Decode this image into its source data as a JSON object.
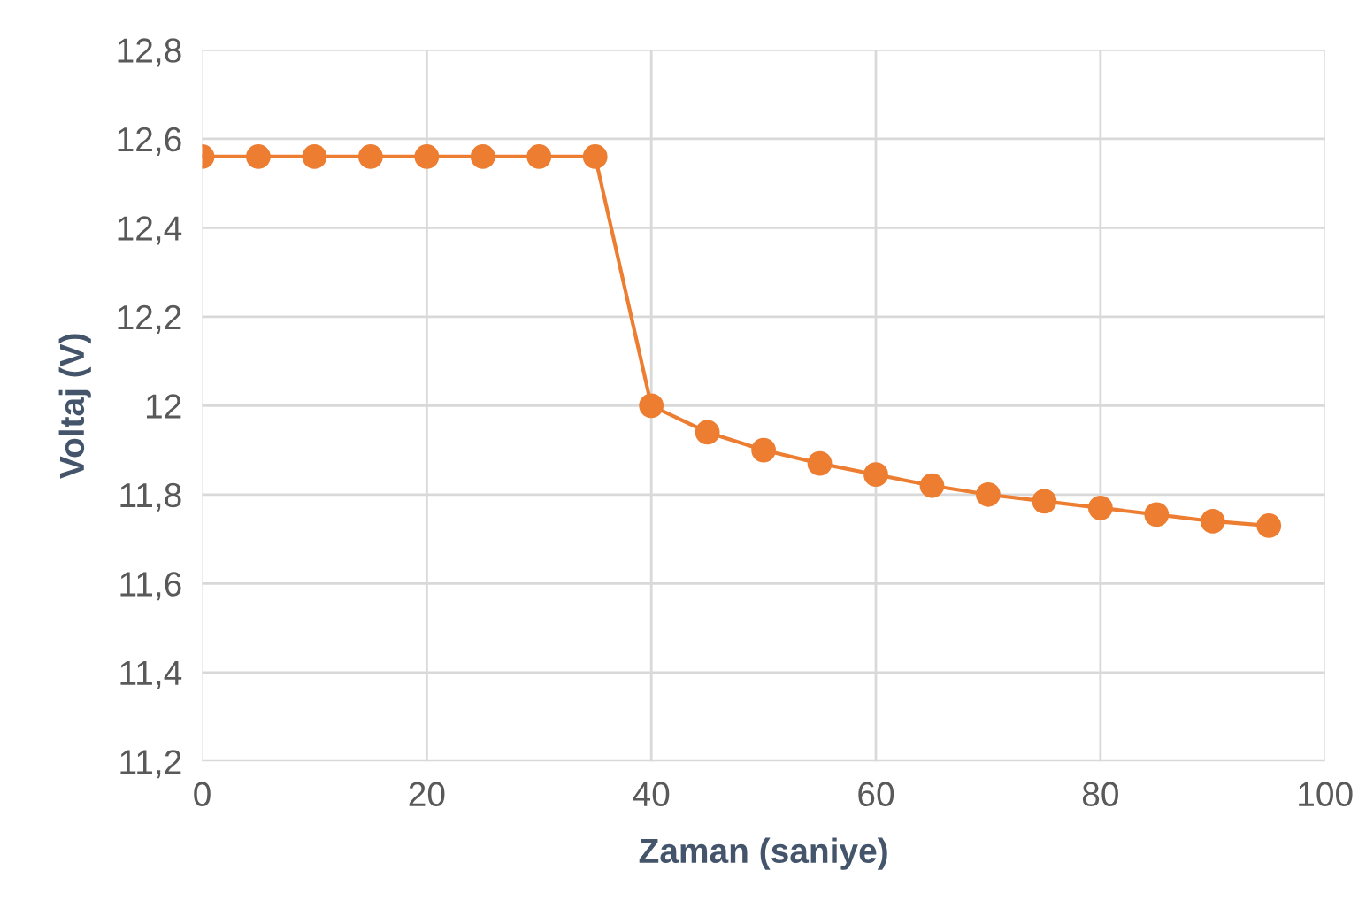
{
  "chart_data": {
    "type": "line",
    "xlabel": "Zaman (saniye)",
    "ylabel": "Voltaj (V)",
    "x": [
      0,
      5,
      10,
      15,
      20,
      25,
      30,
      35,
      40,
      45,
      50,
      55,
      60,
      65,
      70,
      75,
      80,
      85,
      90,
      95
    ],
    "series": [
      {
        "color": "#ed7d31",
        "values": [
          12.56,
          12.56,
          12.56,
          12.56,
          12.56,
          12.56,
          12.56,
          12.56,
          12.0,
          11.94,
          11.9,
          11.87,
          11.845,
          11.82,
          11.8,
          11.785,
          11.77,
          11.755,
          11.74,
          11.73
        ]
      }
    ],
    "xlim": [
      0,
      100
    ],
    "xticks": [
      0,
      20,
      40,
      60,
      80,
      100
    ],
    "ylim": [
      11.2,
      12.8
    ],
    "yticks": [
      {
        "value": 11.2,
        "label": "11,2"
      },
      {
        "value": 11.4,
        "label": "11,4"
      },
      {
        "value": 11.6,
        "label": "11,6"
      },
      {
        "value": 11.8,
        "label": "11,8"
      },
      {
        "value": 12,
        "label": "12"
      },
      {
        "value": 12.2,
        "label": "12,2"
      },
      {
        "value": 12.4,
        "label": "12,4"
      },
      {
        "value": 12.6,
        "label": "12,6"
      },
      {
        "value": 12.8,
        "label": "12,8"
      }
    ],
    "grid": true,
    "marker": "circle",
    "line_style": "solid",
    "legend": false
  }
}
